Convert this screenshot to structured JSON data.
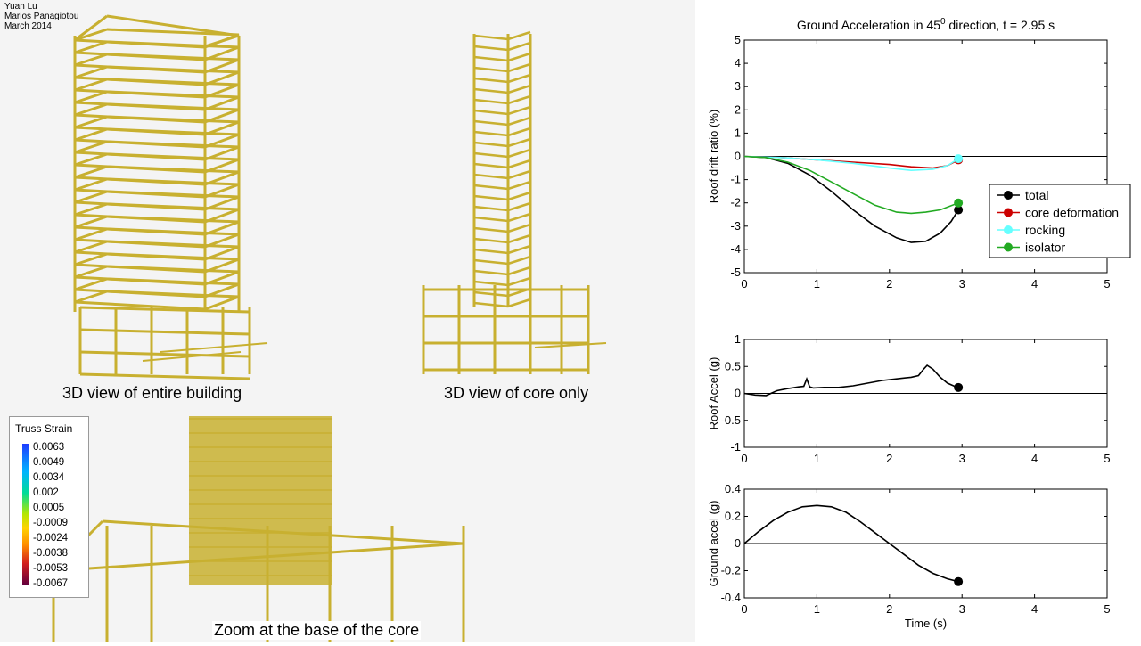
{
  "credits": [
    "Yuan Lu",
    "Marios Panagiotou",
    "March 2014"
  ],
  "captions": {
    "building": "3D view of entire building",
    "core": "3D view of core only",
    "zoom": "Zoom at the base of the core"
  },
  "strain_legend": {
    "title": "Truss Strain",
    "ticks": [
      "0.0063",
      "0.0049",
      "0.0034",
      "0.002",
      "0.0005",
      "-0.0009",
      "-0.0024",
      "-0.0038",
      "-0.0053",
      "-0.0067"
    ]
  },
  "colors": {
    "structure": "#c8b030",
    "total": "#000000",
    "core": "#cc0000",
    "rocking": "#66ffff",
    "isolator": "#22aa22"
  },
  "chart_data": [
    {
      "type": "line",
      "title_main": "Ground Acceleration in 45",
      "title_sup": "0",
      "title_rest": " direction, t = 2.95 s",
      "xlabel": "",
      "ylabel": "Roof drift ratio (%)",
      "xlim": [
        0,
        5
      ],
      "ylim": [
        -5,
        5
      ],
      "xticks": [
        0,
        1,
        2,
        3,
        4,
        5
      ],
      "yticks": [
        5,
        4,
        3,
        2,
        1,
        0,
        -1,
        -2,
        -3,
        -4,
        -5
      ],
      "legend_position": "right",
      "series": [
        {
          "name": "total",
          "color": "#000000",
          "x": [
            0,
            0.3,
            0.6,
            0.9,
            1.2,
            1.5,
            1.8,
            2.1,
            2.3,
            2.5,
            2.7,
            2.85,
            2.95
          ],
          "y": [
            0,
            -0.05,
            -0.3,
            -0.8,
            -1.5,
            -2.3,
            -3.0,
            -3.5,
            -3.7,
            -3.65,
            -3.3,
            -2.8,
            -2.3
          ]
        },
        {
          "name": "core deformation",
          "color": "#cc0000",
          "x": [
            0,
            0.5,
            1.0,
            1.5,
            2.0,
            2.3,
            2.6,
            2.8,
            2.95
          ],
          "y": [
            0,
            -0.05,
            -0.15,
            -0.25,
            -0.35,
            -0.45,
            -0.5,
            -0.4,
            -0.15
          ]
        },
        {
          "name": "rocking",
          "color": "#66ffff",
          "x": [
            0,
            0.5,
            1.0,
            1.5,
            2.0,
            2.3,
            2.6,
            2.8,
            2.95
          ],
          "y": [
            0,
            -0.05,
            -0.15,
            -0.3,
            -0.5,
            -0.6,
            -0.55,
            -0.4,
            -0.1
          ]
        },
        {
          "name": "isolator",
          "color": "#22aa22",
          "x": [
            0,
            0.3,
            0.6,
            0.9,
            1.2,
            1.5,
            1.8,
            2.1,
            2.3,
            2.5,
            2.7,
            2.95
          ],
          "y": [
            0,
            -0.05,
            -0.25,
            -0.6,
            -1.1,
            -1.6,
            -2.1,
            -2.4,
            -2.45,
            -2.4,
            -2.3,
            -2.0
          ]
        }
      ]
    },
    {
      "type": "line",
      "ylabel": "Roof Accel (g)",
      "xlim": [
        0,
        5
      ],
      "ylim": [
        -1,
        1
      ],
      "xticks": [
        0,
        1,
        2,
        3,
        4,
        5
      ],
      "yticks": [
        "1",
        "0.5",
        "0",
        "-0.5",
        "-1"
      ],
      "series": [
        {
          "color": "#000000",
          "x": [
            0,
            0.15,
            0.3,
            0.45,
            0.6,
            0.75,
            0.82,
            0.86,
            0.9,
            0.95,
            1.1,
            1.3,
            1.5,
            1.7,
            1.9,
            2.1,
            2.3,
            2.4,
            2.47,
            2.52,
            2.6,
            2.7,
            2.8,
            2.9,
            2.95
          ],
          "y": [
            0,
            -0.03,
            -0.04,
            0.05,
            0.09,
            0.12,
            0.13,
            0.27,
            0.12,
            0.1,
            0.11,
            0.11,
            0.14,
            0.19,
            0.24,
            0.27,
            0.3,
            0.33,
            0.45,
            0.52,
            0.45,
            0.3,
            0.19,
            0.13,
            0.11
          ]
        }
      ]
    },
    {
      "type": "line",
      "xlabel": "Time (s)",
      "ylabel": "Ground accel (g)",
      "xlim": [
        0,
        5
      ],
      "ylim": [
        -0.4,
        0.4
      ],
      "xticks": [
        0,
        1,
        2,
        3,
        4,
        5
      ],
      "yticks": [
        "0.4",
        "0.2",
        "0",
        "-0.2",
        "-0.4"
      ],
      "series": [
        {
          "color": "#000000",
          "x": [
            0,
            0.2,
            0.4,
            0.6,
            0.8,
            1.0,
            1.2,
            1.4,
            1.6,
            1.8,
            2.0,
            2.2,
            2.4,
            2.6,
            2.8,
            2.95
          ],
          "y": [
            0,
            0.09,
            0.17,
            0.23,
            0.27,
            0.28,
            0.27,
            0.23,
            0.16,
            0.08,
            0,
            -0.08,
            -0.16,
            -0.22,
            -0.26,
            -0.28
          ]
        }
      ]
    }
  ]
}
